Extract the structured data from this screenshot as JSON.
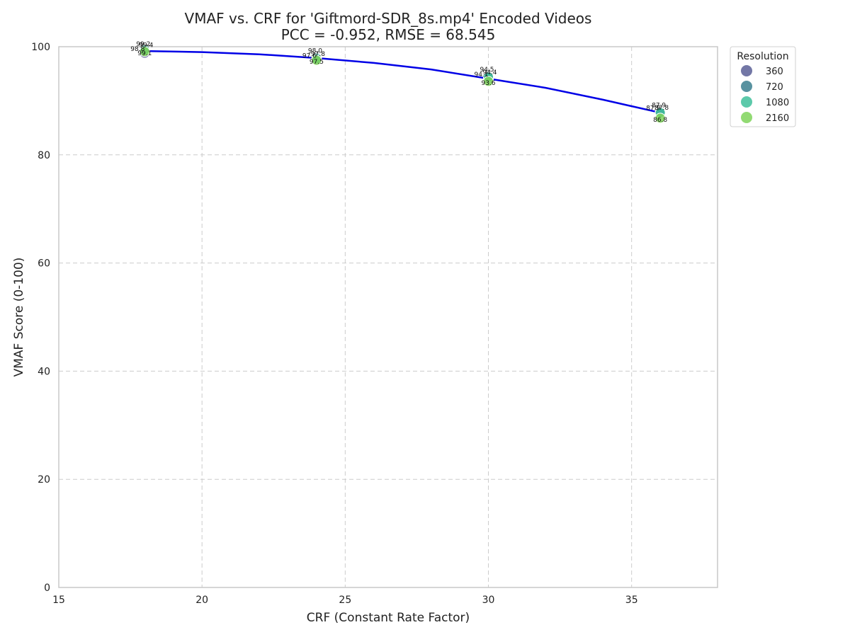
{
  "chart_data": {
    "type": "scatter",
    "title": "VMAF vs. CRF for 'Giftmord-SDR_8s.mp4' Encoded Videos",
    "subtitle": "PCC = -0.952, RMSE = 68.545",
    "xlabel": "CRF (Constant Rate Factor)",
    "ylabel": "VMAF Score (0-100)",
    "xlim": [
      15,
      38
    ],
    "ylim": [
      0,
      100
    ],
    "xticks": [
      15,
      20,
      25,
      30,
      35
    ],
    "yticks": [
      0,
      20,
      40,
      60,
      80,
      100
    ],
    "grid": true,
    "legend": {
      "title": "Resolution",
      "placement": "outside-top-right",
      "entries": [
        {
          "label": "360",
          "color": "#5b5f97"
        },
        {
          "label": "720",
          "color": "#3b7f8f"
        },
        {
          "label": "1080",
          "color": "#3fbf9b"
        },
        {
          "label": "2160",
          "color": "#7fd35a"
        }
      ]
    },
    "series": [
      {
        "name": "360",
        "color": "#5b5f97",
        "points": [
          {
            "x": 18,
            "y": 98.8,
            "label": "98.8"
          },
          {
            "x": 24,
            "y": 97.6,
            "label": "97.6"
          },
          {
            "x": 30,
            "y": 94.1,
            "label": "94.1"
          },
          {
            "x": 36,
            "y": 87.9,
            "label": "87.9"
          }
        ]
      },
      {
        "name": "720",
        "color": "#3b7f8f",
        "points": [
          {
            "x": 18,
            "y": 99.2,
            "label": "99.2"
          },
          {
            "x": 24,
            "y": 98.0,
            "label": "98.0"
          },
          {
            "x": 30,
            "y": 94.5,
            "label": "94.5"
          },
          {
            "x": 36,
            "y": 87.9,
            "label": "87.9"
          }
        ]
      },
      {
        "name": "1080",
        "color": "#3fbf9b",
        "points": [
          {
            "x": 18,
            "y": 99.4,
            "label": "99.4"
          },
          {
            "x": 24,
            "y": 97.8,
            "label": "97.8"
          },
          {
            "x": 30,
            "y": 94.4,
            "label": "94.4"
          },
          {
            "x": 36,
            "y": 87.8,
            "label": "87.8"
          }
        ]
      },
      {
        "name": "2160",
        "color": "#7fd35a",
        "points": [
          {
            "x": 18,
            "y": 99.1,
            "label": "99.1"
          },
          {
            "x": 24,
            "y": 97.5,
            "label": "97.5"
          },
          {
            "x": 30,
            "y": 93.6,
            "label": "93.6"
          },
          {
            "x": 36,
            "y": 86.8,
            "label": "86.8"
          }
        ]
      }
    ],
    "fit_line": {
      "color": "#0000e6",
      "points": [
        {
          "x": 18,
          "y": 99.2
        },
        {
          "x": 20,
          "y": 99.0
        },
        {
          "x": 22,
          "y": 98.6
        },
        {
          "x": 24,
          "y": 97.9
        },
        {
          "x": 26,
          "y": 97.0
        },
        {
          "x": 28,
          "y": 95.8
        },
        {
          "x": 30,
          "y": 94.1
        },
        {
          "x": 32,
          "y": 92.4
        },
        {
          "x": 34,
          "y": 90.2
        },
        {
          "x": 36,
          "y": 87.8
        }
      ]
    }
  }
}
